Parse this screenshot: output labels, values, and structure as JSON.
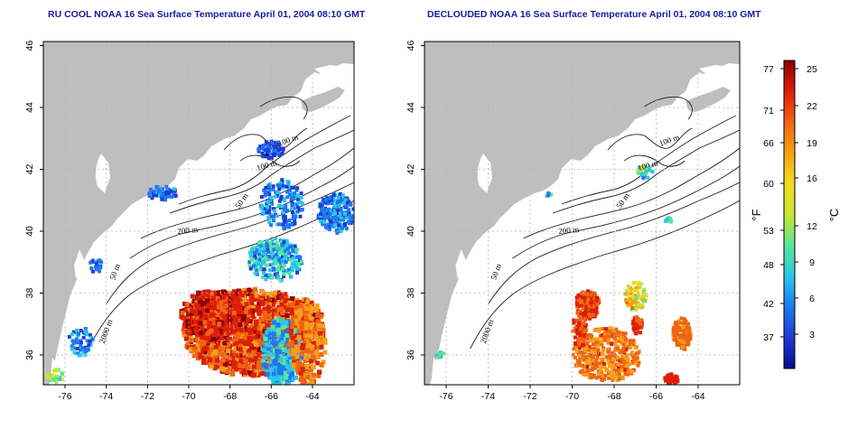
{
  "titles": {
    "left": "RU COOL NOAA 16 Sea Surface Temperature April 01, 2004 08:10 GMT",
    "right": "DECLOUDED NOAA 16 Sea Surface Temperature April 01, 2004 08:10 GMT"
  },
  "axes": {
    "x_ticks": [
      "-76",
      "-74",
      "-72",
      "-70",
      "-68",
      "-66",
      "-64"
    ],
    "y_ticks": [
      "36",
      "38",
      "40",
      "42",
      "44",
      "46"
    ]
  },
  "contour_labels": [
    "100 m",
    "100 m",
    "50 m",
    "200 m",
    "50 m",
    "2000 m"
  ],
  "colorbar": {
    "fahrenheit_ticks": [
      "77",
      "71",
      "66",
      "60",
      "53",
      "48",
      "42",
      "37"
    ],
    "celsius_ticks": [
      "25",
      "22",
      "19",
      "16",
      "12",
      "9",
      "6",
      "3"
    ],
    "fahrenheit_unit": "°F",
    "celsius_unit": "°C",
    "colors": [
      "#0a0a8c",
      "#1e3cd2",
      "#1e78f0",
      "#28c8e6",
      "#5ae696",
      "#c8e632",
      "#f5dc1e",
      "#f5a014",
      "#f06414",
      "#dc1e0a",
      "#8c0000"
    ]
  },
  "colors": {
    "land": "#bebebe",
    "ocean": "#ffffff",
    "contour": "#1e1e1e",
    "grid": "#b4b4b4"
  }
}
